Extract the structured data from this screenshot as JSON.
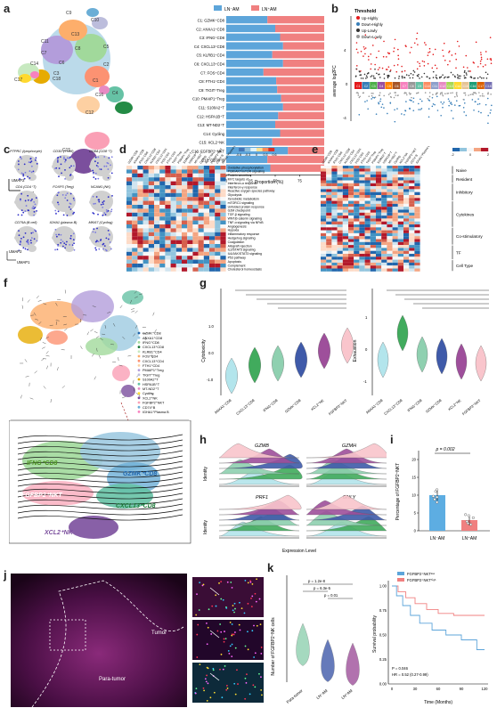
{
  "panels": {
    "a": {
      "label": "a",
      "legend": [
        "LN⁻AM",
        "LN⁺AM"
      ],
      "colors": {
        "ln_neg": "#5DA5DA",
        "ln_pos": "#F08080"
      },
      "xlabel": "Proportion (%)",
      "xticks": [
        "0",
        "25",
        "50",
        "75",
        "100"
      ],
      "umap_axes": [
        "UMAP1",
        "UMAP2"
      ],
      "clusters": [
        {
          "label": "C1: GZMK⁺CD8",
          "ln_neg": 42
        },
        {
          "label": "C2: ANXA1⁺CD8",
          "ln_neg": 50
        },
        {
          "label": "C3: IFNG⁺CD8",
          "ln_neg": 55
        },
        {
          "label": "C4: CXCL13⁺CD8",
          "ln_neg": 58
        },
        {
          "label": "C5: KLRB1⁺CD4",
          "ln_neg": 47
        },
        {
          "label": "C6: CXCL13⁺CD4",
          "ln_neg": 58
        },
        {
          "label": "C7: FOS⁺CD4",
          "ln_neg": 38
        },
        {
          "label": "C8: FTH1⁺CD4",
          "ln_neg": 51
        },
        {
          "label": "C9: TIGIT⁺Treg",
          "ln_neg": 52
        },
        {
          "label": "C10: PMAIP1⁺Treg",
          "ln_neg": 56
        },
        {
          "label": "C11: S100A2⁺T",
          "ln_neg": 58
        },
        {
          "label": "C12: HSPA1B⁺T",
          "ln_neg": 53
        },
        {
          "label": "C13: MT-ND2⁺T",
          "ln_neg": 50
        },
        {
          "label": "C14: Cycling",
          "ln_neg": 55
        },
        {
          "label": "C15: XCL2⁺NK",
          "ln_neg": 47
        },
        {
          "label": "C16: FGFBP2⁺NKT",
          "ln_neg": 63
        },
        {
          "label": "C17: CD74⁺B",
          "ln_neg": 42
        },
        {
          "label": "C18: IGHA1⁺Plasma B",
          "ln_neg": 45
        }
      ],
      "cluster_ids": [
        "C1",
        "C2",
        "C3",
        "C4",
        "C5",
        "C6",
        "C7",
        "C8",
        "C9",
        "C10",
        "C11",
        "C12",
        "C13",
        "C14",
        "C15",
        "C16",
        "C17",
        "C18"
      ]
    },
    "b": {
      "label": "b",
      "legend_title": "Threshold",
      "legend": [
        {
          "name": "Up-Highly",
          "color": "#E41A1C"
        },
        {
          "name": "Down-Highly",
          "color": "#377EB8"
        },
        {
          "name": "Up-Lowly",
          "color": "#333333"
        },
        {
          "name": "Down-Lowly",
          "color": "#999999"
        }
      ],
      "ylabel": "average log2FC",
      "yticks": [
        "4",
        "0",
        "-4"
      ]
    },
    "c": {
      "label": "c",
      "features": [
        "PTPRC (lymphocyte)",
        "CD3D (T cell)",
        "CD8A (CD8⁺T)",
        "CD4 (CD4⁺T)",
        "FOXP3 (Treg)",
        "NCAM1 (NK)",
        "CD79A (B cell)",
        "IGHA1 (plasma B)",
        "MKI67 (Cycling)"
      ],
      "umap_axes": [
        "UMAP1",
        "UMAP2"
      ]
    },
    "d": {
      "label": "d",
      "scale": [
        "-0.6",
        "-0.3",
        "0",
        "0.3",
        "0.6"
      ],
      "pathways": [
        "Oxidative phosphorylation",
        "PI3K/AKT/mTOR signaling",
        "Protein secretion",
        "MYC targets v1",
        "Interferon-α response",
        "Interferon-γ response",
        "Reactive oxygen species pathway",
        "Glycolysis",
        "Xenobiotic metabolism",
        "mTORC1 signaling",
        "Unfolded protein response",
        "G2M checkpoint",
        "TGF-β signaling",
        "WNT/β-catenin signaling",
        "TNF-α signaling via NFκB",
        "Angiogenesis",
        "Hypoxia",
        "Inflammatory response",
        "Hedgehog signaling",
        "Coagulation",
        "Allograft rejection",
        "IL2/STAT5 signaling",
        "IL6/JAK/STAT3 signaling",
        "P53 pathway",
        "Apoptosis",
        "Complement",
        "Cholesterol homeostasis"
      ]
    },
    "e": {
      "label": "e",
      "scale": [
        "-2",
        "0",
        "2"
      ],
      "groups": [
        "Naive",
        "Resident",
        "Inhibitory",
        "Cytokines",
        "Co-stimulatory",
        "TF",
        "Cell Type"
      ]
    },
    "f": {
      "label": "f",
      "legend": [
        "GZMK⁺CD8",
        "ANXA1⁺CD8",
        "IFNG⁺CD8",
        "CXCL13⁺CD8",
        "KLRB1⁺CD4",
        "FOS⁺CD4",
        "CXCL13⁺CD4",
        "FTH1⁺CD4",
        "PMAIP1⁺Treg",
        "TIGIT⁺Treg",
        "S100A2⁺T",
        "HSPA1B⁺T",
        "MT-ND2⁺T",
        "Cycling",
        "XCL2⁺NK",
        "FGFBP2⁺NKT",
        "CD74⁺B",
        "IGHA1⁺Plasma B"
      ],
      "zoom_labels": [
        "IFNG⁺CD8",
        "GZMK⁺CD8",
        "FGFBP2⁺NKT",
        "CXCL13⁺CD8",
        "XCL2⁺NK"
      ]
    },
    "g": {
      "label": "g",
      "left_ylabel": "Cytotoxicity",
      "right_ylabel": "Exhaustion",
      "groups": [
        "ANXA1⁺CD8",
        "CXCL13⁺CD8",
        "IFNG⁺CD8",
        "GZMK⁺CD8",
        "XCL2⁺NK",
        "FGFBP2⁺NKT"
      ],
      "left_yticks": [
        "1.0",
        "0.0",
        "-1.0"
      ],
      "right_yticks": [
        "1",
        "0",
        "-1"
      ]
    },
    "h": {
      "label": "h",
      "genes": [
        "GZMB",
        "GZMH",
        "PRF1",
        "GNLY"
      ],
      "ylabel": "Identity",
      "xlabel": "Expression Level"
    },
    "i": {
      "label": "i",
      "ylabel": "Percentage of FGFBP2⁺NKT",
      "categories": [
        "LN⁻AM",
        "LN⁺AM"
      ],
      "values": [
        10,
        3
      ],
      "pvalue": "p = 0.002",
      "yticks": [
        "20",
        "15",
        "10",
        "5",
        "0"
      ]
    },
    "j": {
      "label": "j",
      "region_labels": [
        "Para-tumor",
        "Tumor"
      ],
      "stain": "CD8/CD3/NCAM1/FGFBP2/DAPI"
    },
    "k": {
      "label": "k",
      "violin_ylabel": "Number of FGFBP2⁺NK cells",
      "violin_groups": [
        "Para-tumor",
        "LN⁻AM",
        "LN⁺AM"
      ],
      "pvalues": [
        "p = 1.2e-8",
        "p = 6.3e-5",
        "p = 0.01"
      ],
      "km_legend": [
        "FGFBP2⁺NKTˡᵒʷ",
        "FGFBP2⁺NKTʰⁱᵍʰ"
      ],
      "km_ylabel": "Survival probability",
      "km_xlabel": "Time (Months)",
      "km_xticks": [
        "0",
        "30",
        "60",
        "90",
        "120"
      ],
      "km_yticks": [
        "1.00",
        "0.75",
        "0.50",
        "0.25",
        "0.00"
      ],
      "km_stats": [
        "P = 0.046",
        "HR = 0.52 (0.27-0.99)"
      ]
    }
  }
}
